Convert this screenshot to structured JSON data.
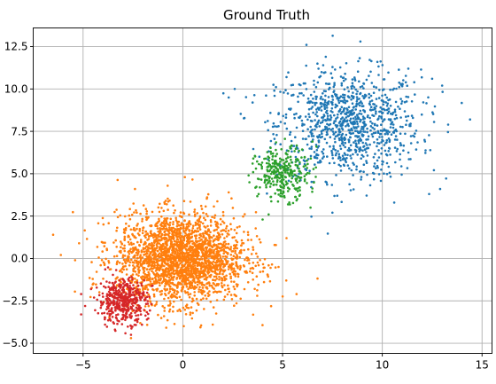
{
  "chart_data": {
    "type": "scatter",
    "title": "Ground Truth",
    "xlabel": "",
    "ylabel": "",
    "xlim": [
      -7.5,
      15.5
    ],
    "ylim": [
      -5.6,
      13.6
    ],
    "grid": true,
    "legend": "none",
    "x_ticks": [
      -5,
      0,
      5,
      10,
      15
    ],
    "x_tick_labels": [
      "−5",
      "0",
      "5",
      "10",
      "15"
    ],
    "y_ticks": [
      -5.0,
      -2.5,
      0.0,
      2.5,
      5.0,
      7.5,
      10.0,
      12.5
    ],
    "y_tick_labels": [
      "−5.0",
      "−2.5",
      "0.0",
      "2.5",
      "5.0",
      "7.5",
      "10.0",
      "12.5"
    ],
    "series": [
      {
        "color": "#1f77b4",
        "clusters": [
          {
            "center": [
              8.3,
              7.9
            ],
            "spread": [
              1.8,
              1.6
            ],
            "count": 1000
          }
        ],
        "points": [
          [
            6.2,
            12.6
          ],
          [
            8.9,
            12.8
          ],
          [
            2.3,
            9.5
          ],
          [
            2.6,
            10.0
          ],
          [
            14.4,
            8.2
          ],
          [
            13.3,
            7.9
          ],
          [
            12.9,
            4.1
          ],
          [
            7.5,
            2.7
          ],
          [
            10.6,
            3.3
          ],
          [
            4.6,
            9.6
          ],
          [
            5.2,
            10.7
          ],
          [
            12.5,
            10.6
          ],
          [
            13.0,
            10.2
          ],
          [
            11.6,
            10.4
          ],
          [
            3.5,
            9.2
          ],
          [
            6.8,
            11.2
          ]
        ]
      },
      {
        "color": "#ff7f0e",
        "clusters": [
          {
            "center": [
              -0.1,
              0.0
            ],
            "spread": [
              1.6,
              1.3
            ],
            "count": 2400
          }
        ],
        "points": [
          [
            -6.5,
            1.4
          ],
          [
            -5.2,
            0.9
          ],
          [
            -5.4,
            -0.1
          ],
          [
            0.1,
            4.8
          ],
          [
            1.5,
            -3.9
          ],
          [
            2.6,
            -1.8
          ],
          [
            5.7,
            -2.1
          ],
          [
            4.8,
            -0.5
          ],
          [
            3.8,
            -0.4
          ],
          [
            4.6,
            0.8
          ],
          [
            5.2,
            1.2
          ],
          [
            2.3,
            3.9
          ],
          [
            -2.6,
            -4.7
          ],
          [
            -2.4,
            4.1
          ]
        ]
      },
      {
        "color": "#2ca02c",
        "clusters": [
          {
            "center": [
              5.0,
              5.0
            ],
            "spread": [
              0.65,
              0.75
            ],
            "count": 300
          }
        ],
        "points": [
          [
            4.0,
            2.3
          ],
          [
            4.3,
            2.6
          ],
          [
            6.4,
            3.0
          ],
          [
            3.3,
            4.9
          ],
          [
            3.5,
            5.6
          ],
          [
            6.7,
            6.6
          ],
          [
            6.5,
            6.9
          ],
          [
            3.8,
            3.8
          ]
        ]
      },
      {
        "color": "#d62728",
        "clusters": [
          {
            "center": [
              -3.0,
              -2.5
            ],
            "spread": [
              0.6,
              0.65
            ],
            "count": 450
          }
        ],
        "points": [
          [
            -5.1,
            -2.1
          ],
          [
            -5.1,
            -3.3
          ],
          [
            -4.6,
            -1.8
          ],
          [
            -3.9,
            -3.9
          ],
          [
            -3.4,
            -4.2
          ],
          [
            -2.6,
            -4.5
          ],
          [
            -1.8,
            -3.6
          ],
          [
            -4.9,
            -2.8
          ]
        ]
      }
    ]
  }
}
